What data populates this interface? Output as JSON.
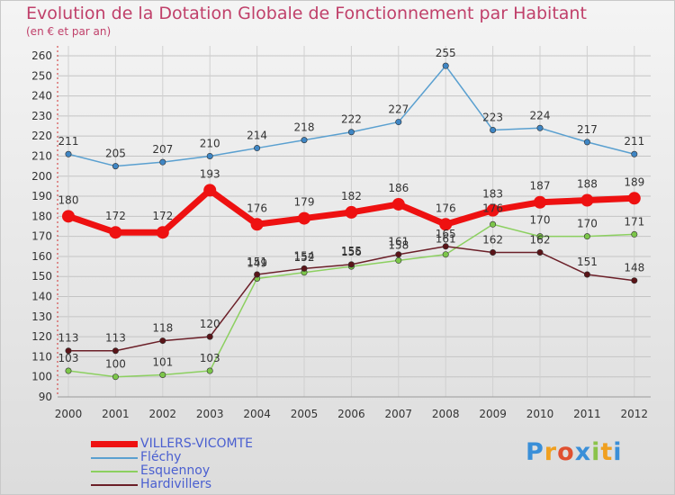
{
  "chart": {
    "title": "Evolution de la Dotation Globale de Fonctionnement par Habitant",
    "subtitle": "(en € et par an)"
  },
  "brand": {
    "text": "Proxiti",
    "colors": [
      "#3a8fd8",
      "#f0a020",
      "#e05030",
      "#3a8fd8",
      "#8bc34a",
      "#f0a020",
      "#3a8fd8"
    ]
  },
  "chart_data": {
    "type": "line",
    "title": "Evolution de la Dotation Globale de Fonctionnement par Habitant",
    "subtitle": "(en € et par an)",
    "xlabel": "",
    "ylabel": "",
    "x": [
      "2000",
      "2001",
      "2002",
      "2003",
      "2004",
      "2005",
      "2006",
      "2007",
      "2008",
      "2009",
      "2010",
      "2011",
      "2012"
    ],
    "yticks": [
      90,
      100,
      110,
      120,
      130,
      140,
      150,
      160,
      170,
      180,
      190,
      200,
      210,
      220,
      230,
      240,
      250,
      260
    ],
    "ylim": [
      90,
      260
    ],
    "grid": true,
    "legend": "bottom-left",
    "series": [
      {
        "name": "Fléchy",
        "color": "#5aa0d0",
        "marker": "#3f86c4",
        "values": [
          211,
          205,
          207,
          210,
          214,
          218,
          222,
          227,
          255,
          223,
          224,
          217,
          211
        ]
      },
      {
        "name": "Esquennoy",
        "color": "#8cd060",
        "marker": "#7cc64a",
        "values": [
          103,
          100,
          101,
          103,
          149,
          152,
          155,
          158,
          161,
          176,
          170,
          170,
          171
        ]
      },
      {
        "name": "Hardivillers",
        "color": "#6b1f28",
        "marker": "#5a1418",
        "values": [
          113,
          113,
          118,
          120,
          151,
          154,
          156,
          161,
          165,
          162,
          162,
          151,
          148
        ]
      },
      {
        "name": "VILLERS-VICOMTE",
        "color": "#ee1111",
        "marker": "#ee1111",
        "values": [
          180,
          172,
          172,
          193,
          176,
          179,
          182,
          186,
          176,
          183,
          187,
          188,
          189
        ]
      }
    ]
  }
}
